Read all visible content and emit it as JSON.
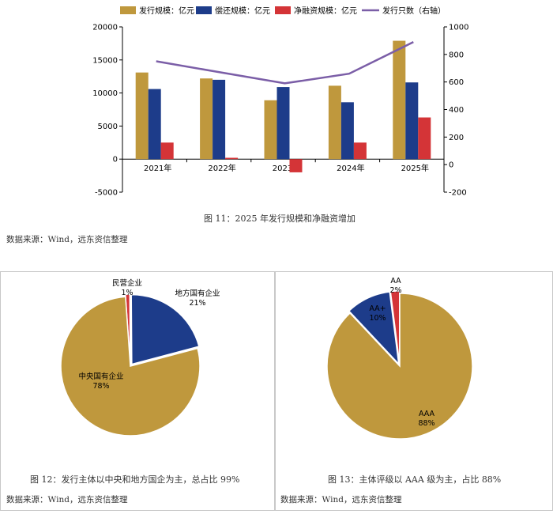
{
  "bar_chart": {
    "caption": "图 11：2025 年发行规模和净融资增加",
    "source": "数据来源：Wind，远东资信整理",
    "legend": {
      "issue": "发行规模：亿元",
      "repay": "偿还规模：亿元",
      "net": "净融资规模：亿元",
      "count": "发行只数（右轴）"
    },
    "colors": {
      "issue": "#BF983D",
      "repay": "#1D3C8A",
      "net": "#D43437",
      "count": "#7B5EA7"
    }
  },
  "pie_left": {
    "caption": "图 12：发行主体以中央和地方国企为主，总占比 99%",
    "source": "数据来源：Wind，远东资信整理",
    "labels": [
      {
        "name": "民营企业",
        "pct": "1%"
      },
      {
        "name": "地方国有企业",
        "pct": "21%"
      },
      {
        "name": "中央国有企业",
        "pct": "78%"
      }
    ]
  },
  "pie_right": {
    "caption": "图 13：主体评级以 AAA 级为主，占比 88%",
    "source": "数据来源：Wind，远东资信整理",
    "labels": [
      {
        "name": "AA",
        "pct": "2%"
      },
      {
        "name": "AA+",
        "pct": "10%"
      },
      {
        "name": "AAA",
        "pct": "88%"
      }
    ]
  },
  "chart_data": [
    {
      "type": "bar",
      "categories": [
        "2021年",
        "2022年",
        "2023年",
        "2024年",
        "2025年"
      ],
      "series": [
        {
          "name": "发行规模：亿元",
          "values": [
            13100,
            12200,
            8900,
            11100,
            17900
          ]
        },
        {
          "name": "偿还规模：亿元",
          "values": [
            10600,
            12000,
            10900,
            8600,
            11600
          ]
        },
        {
          "name": "净融资规模：亿元",
          "values": [
            2500,
            200,
            -2000,
            2500,
            6300
          ]
        }
      ],
      "line_series": {
        "name": "发行只数（右轴）",
        "values": [
          750,
          670,
          590,
          660,
          890
        ],
        "axis": "right"
      },
      "ylim": [
        -5000,
        20000
      ],
      "yticks": [
        -5000,
        0,
        5000,
        10000,
        15000,
        20000
      ],
      "y2lim": [
        -200,
        1000
      ],
      "y2ticks": [
        -200,
        0,
        200,
        400,
        600,
        800,
        1000
      ],
      "legend_position": "top",
      "grid": false
    },
    {
      "type": "pie",
      "categories": [
        "民营企业",
        "地方国有企业",
        "中央国有企业"
      ],
      "values": [
        1,
        21,
        78
      ],
      "colors": [
        "#D43437",
        "#1D3C8A",
        "#BF983D"
      ]
    },
    {
      "type": "pie",
      "categories": [
        "AA",
        "AA+",
        "AAA"
      ],
      "values": [
        2,
        10,
        88
      ],
      "colors": [
        "#D43437",
        "#1D3C8A",
        "#BF983D"
      ]
    }
  ]
}
